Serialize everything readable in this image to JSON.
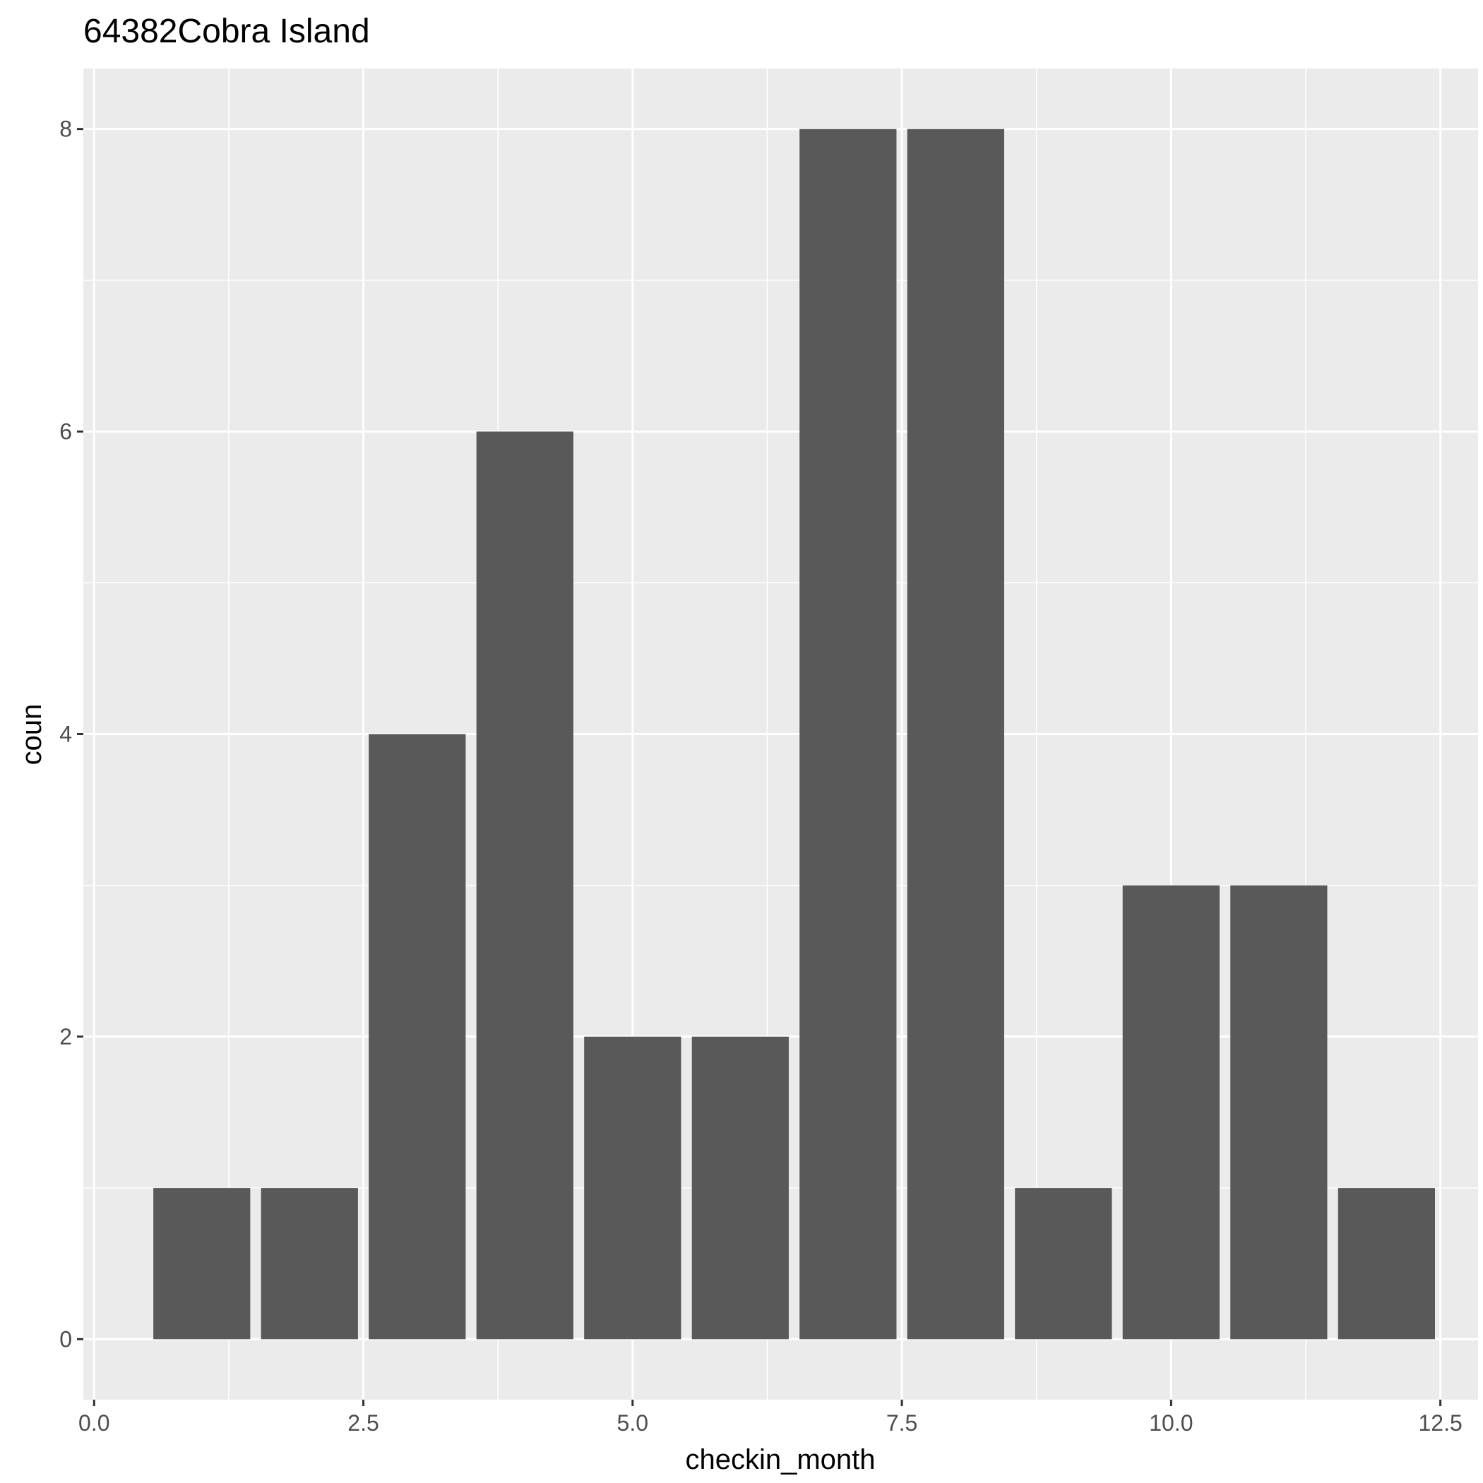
{
  "chart_data": {
    "type": "bar",
    "title": "64382Cobra Island",
    "xlabel": "checkin_month",
    "ylabel": "coun",
    "x": [
      1,
      2,
      3,
      4,
      5,
      6,
      7,
      8,
      9,
      10,
      11,
      12
    ],
    "values": [
      1,
      1,
      4,
      6,
      2,
      2,
      8,
      8,
      1,
      3,
      3,
      1
    ],
    "xlim": [
      -0.1,
      12.85
    ],
    "ylim": [
      -0.4,
      8.4
    ],
    "x_ticks": [
      0,
      2.5,
      5,
      7.5,
      10,
      12.5
    ],
    "x_tick_labels": [
      "0.0",
      "2.5",
      "5.0",
      "7.5",
      "10.0",
      "12.5"
    ],
    "y_ticks": [
      0,
      2,
      4,
      6,
      8
    ],
    "y_tick_labels": [
      "0",
      "2",
      "4",
      "6",
      "8"
    ],
    "bar_width": 0.9,
    "grid": true,
    "colors": {
      "panel": "#ebebeb",
      "grid": "#ffffff",
      "bar": "#595959",
      "tick_text": "#4d4d4d",
      "axis_text": "#000000"
    }
  }
}
